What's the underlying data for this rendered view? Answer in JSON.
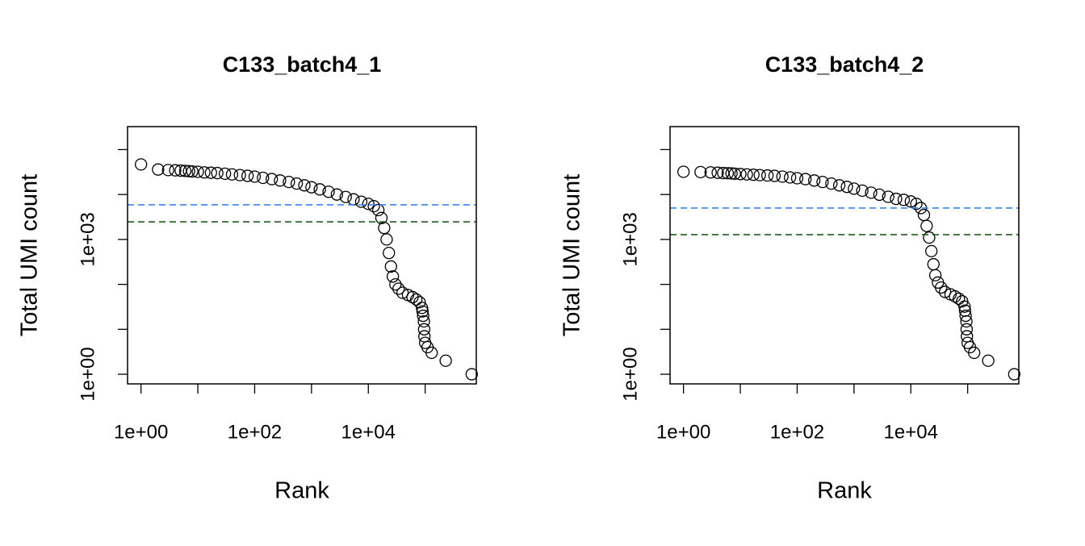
{
  "chart_data": [
    {
      "type": "scatter",
      "title": "C133_batch4_1",
      "xlabel": "Rank",
      "ylabel": "Total UMI count",
      "log_x": true,
      "log_y": true,
      "color": "#000000",
      "xlim": [
        0.58,
        794000
      ],
      "ylim": [
        0.61,
        324000
      ],
      "xticks": [
        {
          "value": 1,
          "label": "1e+00"
        },
        {
          "value": 100,
          "label": "1e+02"
        },
        {
          "value": 10000,
          "label": "1e+04"
        }
      ],
      "xtick_marks": [
        1,
        10,
        100,
        1000,
        10000,
        100000
      ],
      "yticks": [
        {
          "value": 1,
          "label": "1e+00"
        },
        {
          "value": 1000,
          "label": "1e+03"
        }
      ],
      "ytick_marks": [
        1,
        10,
        100,
        1000,
        10000,
        100000
      ],
      "hlines": [
        {
          "value": 5900,
          "color": "#3b82f6"
        },
        {
          "value": 2460,
          "color": "#1f5f1f"
        }
      ],
      "x": [
        1,
        2,
        3,
        4,
        5,
        6,
        7,
        8,
        10,
        13,
        17,
        22,
        30,
        40,
        55,
        75,
        100,
        140,
        200,
        280,
        400,
        550,
        750,
        1000,
        1400,
        2000,
        2800,
        4000,
        5500,
        7500,
        10000,
        12500,
        15000,
        17000,
        19000,
        21000,
        23000,
        25000,
        27000,
        30000,
        34000,
        40000,
        50000,
        60000,
        70000,
        80000,
        88000,
        90000,
        92000,
        95000,
        96000,
        97000,
        100000,
        110000,
        130000,
        230000,
        660000
      ],
      "values": [
        46700,
        36000,
        35000,
        34500,
        34000,
        33500,
        33000,
        32500,
        32000,
        31000,
        30500,
        30000,
        29000,
        28000,
        27000,
        26000,
        25000,
        23500,
        22000,
        20500,
        19000,
        17500,
        16000,
        14500,
        13000,
        11500,
        10000,
        8800,
        7800,
        6900,
        6200,
        5500,
        4500,
        3000,
        1800,
        1000,
        500,
        250,
        150,
        100,
        80,
        65,
        58,
        52,
        46,
        40,
        30,
        25,
        20,
        15,
        10,
        7,
        5,
        4,
        3,
        2,
        1
      ]
    },
    {
      "type": "scatter",
      "title": "C133_batch4_2",
      "xlabel": "Rank",
      "ylabel": "Total UMI count",
      "log_x": true,
      "log_y": true,
      "color": "#000000",
      "xlim": [
        0.58,
        794000
      ],
      "ylim": [
        0.61,
        324000
      ],
      "xticks": [
        {
          "value": 1,
          "label": "1e+00"
        },
        {
          "value": 100,
          "label": "1e+02"
        },
        {
          "value": 10000,
          "label": "1e+04"
        }
      ],
      "xtick_marks": [
        1,
        10,
        100,
        1000,
        10000,
        100000
      ],
      "yticks": [
        {
          "value": 1,
          "label": "1e+00"
        },
        {
          "value": 1000,
          "label": "1e+03"
        }
      ],
      "ytick_marks": [
        1,
        10,
        100,
        1000,
        10000,
        100000
      ],
      "hlines": [
        {
          "value": 5000,
          "color": "#3b82f6"
        },
        {
          "value": 1280,
          "color": "#1f5f1f"
        }
      ],
      "x": [
        1,
        2,
        3,
        4,
        5,
        6,
        7,
        8,
        10,
        13,
        17,
        22,
        30,
        40,
        55,
        75,
        100,
        140,
        200,
        280,
        400,
        550,
        750,
        1000,
        1400,
        2000,
        2800,
        4000,
        5500,
        7500,
        10000,
        12500,
        15000,
        17000,
        19000,
        21000,
        23000,
        25000,
        27000,
        30000,
        34000,
        40000,
        50000,
        60000,
        70000,
        80000,
        88000,
        90000,
        92000,
        95000,
        96000,
        97000,
        100000,
        110000,
        130000,
        230000,
        660000
      ],
      "values": [
        32000,
        31500,
        31000,
        30500,
        30000,
        29800,
        29500,
        29000,
        28500,
        28000,
        27500,
        27000,
        26500,
        26000,
        25000,
        24000,
        23000,
        22000,
        20500,
        19000,
        17500,
        16000,
        14800,
        13500,
        12200,
        11000,
        9900,
        8900,
        8000,
        7600,
        7000,
        6200,
        5000,
        3500,
        2000,
        1100,
        550,
        280,
        160,
        110,
        85,
        68,
        60,
        54,
        48,
        42,
        32,
        26,
        20,
        15,
        10,
        7,
        5,
        4,
        3,
        2,
        1
      ]
    }
  ]
}
